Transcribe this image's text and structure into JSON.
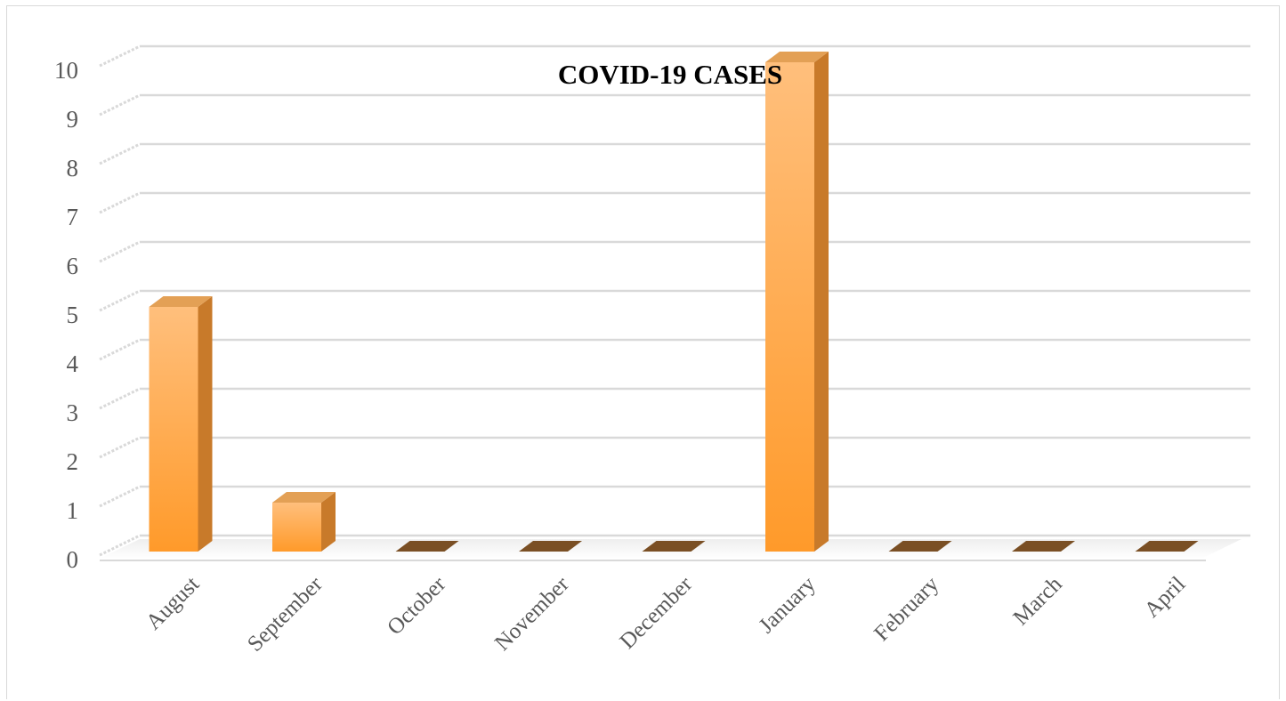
{
  "chart_data": {
    "type": "bar",
    "title": "COVID-19 CASES",
    "xlabel": "",
    "ylabel": "",
    "categories": [
      "August",
      "September",
      "October",
      "November",
      "December",
      "January",
      "February",
      "March",
      "April"
    ],
    "values": [
      5,
      1,
      0,
      0,
      0,
      10,
      0,
      0,
      0
    ],
    "ylim": [
      0,
      10
    ],
    "yticks": [
      0,
      1,
      2,
      3,
      4,
      5,
      6,
      7,
      8,
      9,
      10
    ],
    "grid": true,
    "legend": "none",
    "style": "3d-column",
    "colors": {
      "bar_top": "#ffbf7c",
      "bar_bottom": "#ff9a2a",
      "bar_side": "#c87a2a",
      "bar_cap": "#e3a055",
      "zero_bar": "#7a4f24",
      "grid": "#d9d9d9"
    }
  }
}
